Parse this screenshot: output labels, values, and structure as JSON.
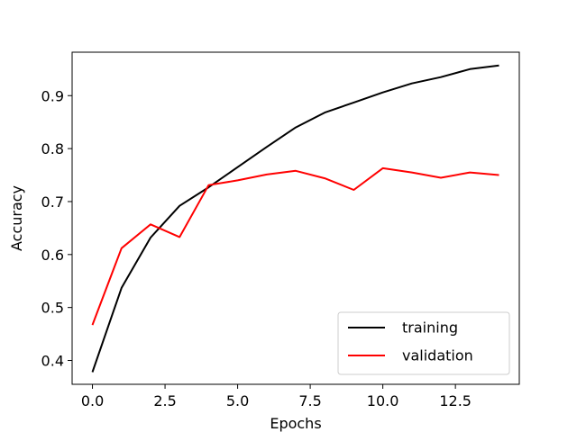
{
  "chart_data": {
    "type": "line",
    "title": "",
    "xlabel": "Epochs",
    "ylabel": "Accuracy",
    "xlim": [
      -0.7,
      14.7
    ],
    "ylim": [
      0.355,
      0.982
    ],
    "xticks": [
      0.0,
      2.5,
      5.0,
      7.5,
      10.0,
      12.5
    ],
    "xtick_labels": [
      "0.0",
      "2.5",
      "5.0",
      "7.5",
      "10.0",
      "12.5"
    ],
    "yticks": [
      0.4,
      0.5,
      0.6,
      0.7,
      0.8,
      0.9
    ],
    "ytick_labels": [
      "0.4",
      "0.5",
      "0.6",
      "0.7",
      "0.8",
      "0.9"
    ],
    "grid": false,
    "legend_position": "lower-right",
    "x": [
      0,
      1,
      2,
      3,
      4,
      5,
      6,
      7,
      8,
      9,
      10,
      11,
      12,
      13,
      14
    ],
    "series": [
      {
        "name": "training",
        "color": "#000000",
        "values": [
          0.378,
          0.537,
          0.632,
          0.692,
          0.727,
          0.765,
          0.803,
          0.84,
          0.868,
          0.887,
          0.906,
          0.923,
          0.935,
          0.95,
          0.957
        ]
      },
      {
        "name": "validation",
        "color": "#ff0000",
        "values": [
          0.467,
          0.612,
          0.657,
          0.633,
          0.731,
          0.74,
          0.751,
          0.758,
          0.744,
          0.722,
          0.763,
          0.755,
          0.745,
          0.755,
          0.75
        ]
      }
    ]
  }
}
